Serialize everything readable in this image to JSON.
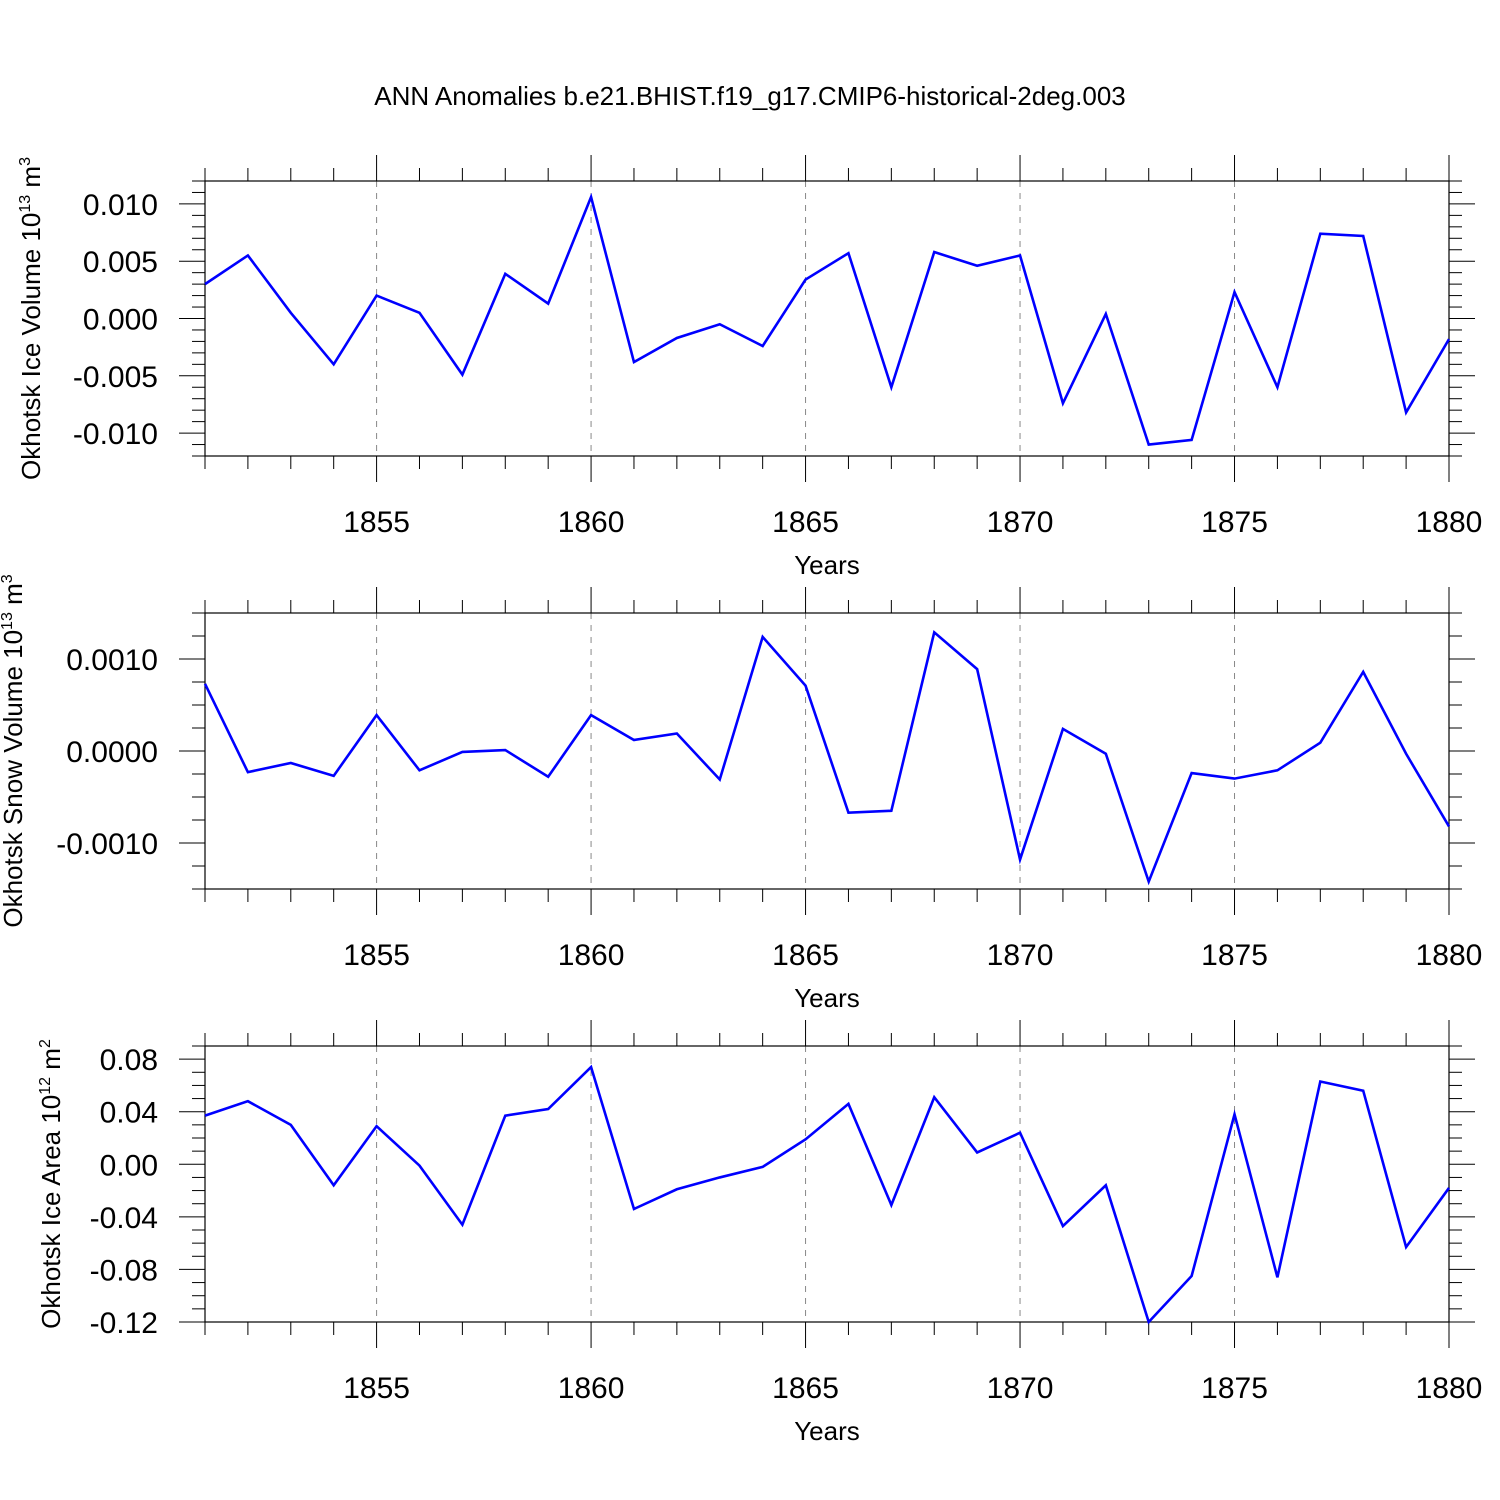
{
  "title": "ANN Anomalies b.e21.BHIST.f19_g17.CMIP6-historical-2deg.003",
  "line_color": "#0000ff",
  "chart_data": [
    {
      "type": "line",
      "xlabel": "Years",
      "ylabel": "Okhotsk Ice Volume 10^13 m^3",
      "ylabel_parts": {
        "base": "Okhotsk Ice Volume 10",
        "exp1": "13",
        "unit": " m",
        "exp2": "3"
      },
      "xlim": [
        1851,
        1880
      ],
      "ylim": [
        -0.012,
        0.012
      ],
      "xticks": [
        1855,
        1860,
        1865,
        1870,
        1875,
        1880
      ],
      "xtick_labels": [
        "1855",
        "1860",
        "1865",
        "1870",
        "1875",
        "1880"
      ],
      "yticks": [
        0.01,
        0.005,
        0.0,
        -0.005,
        -0.01
      ],
      "ytick_labels": [
        "0.010",
        "0.005",
        "0.000",
        "-0.005",
        "-0.010"
      ],
      "y_minor_step": 0.001,
      "grid": "vertical dashed at major x ticks",
      "x": [
        1851,
        1852,
        1853,
        1854,
        1855,
        1856,
        1857,
        1858,
        1859,
        1860,
        1861,
        1862,
        1863,
        1864,
        1865,
        1866,
        1867,
        1868,
        1869,
        1870,
        1871,
        1872,
        1873,
        1874,
        1875,
        1876,
        1877,
        1878,
        1879,
        1880
      ],
      "y": [
        0.003,
        0.0055,
        0.0005,
        -0.004,
        0.002,
        0.0005,
        -0.0049,
        0.0039,
        0.0013,
        0.0106,
        -0.0038,
        -0.0017,
        -0.0005,
        -0.0024,
        0.0034,
        0.0057,
        -0.006,
        0.0058,
        0.0046,
        0.0055,
        -0.0074,
        0.0004,
        -0.011,
        -0.0106,
        0.0023,
        -0.006,
        0.0074,
        0.0072,
        -0.0082,
        -0.0018
      ]
    },
    {
      "type": "line",
      "xlabel": "Years",
      "ylabel": "Okhotsk Snow Volume 10^13 m^3",
      "ylabel_parts": {
        "base": "Okhotsk Snow Volume 10",
        "exp1": "13",
        "unit": " m",
        "exp2": "3"
      },
      "xlim": [
        1851,
        1880
      ],
      "ylim": [
        -0.0015,
        0.0015
      ],
      "xticks": [
        1855,
        1860,
        1865,
        1870,
        1875,
        1880
      ],
      "xtick_labels": [
        "1855",
        "1860",
        "1865",
        "1870",
        "1875",
        "1880"
      ],
      "yticks": [
        0.001,
        0.0,
        -0.001
      ],
      "ytick_labels": [
        "0.0010",
        "0.0000",
        "-0.0010"
      ],
      "y_minor_step": 0.00025,
      "grid": "vertical dashed at major x ticks",
      "x": [
        1851,
        1852,
        1853,
        1854,
        1855,
        1856,
        1857,
        1858,
        1859,
        1860,
        1861,
        1862,
        1863,
        1864,
        1865,
        1866,
        1867,
        1868,
        1869,
        1870,
        1871,
        1872,
        1873,
        1874,
        1875,
        1876,
        1877,
        1878,
        1879,
        1880
      ],
      "y": [
        0.00073,
        -0.00023,
        -0.00013,
        -0.00027,
        0.00039,
        -0.00021,
        -1e-05,
        1e-05,
        -0.00028,
        0.00039,
        0.00012,
        0.00019,
        -0.00031,
        0.00124,
        0.00071,
        -0.00067,
        -0.00065,
        0.00129,
        0.00089,
        -0.00118,
        0.00024,
        -3e-05,
        -0.00142,
        -0.00024,
        -0.0003,
        -0.00021,
        9e-05,
        0.00086,
        -3e-05,
        -0.00082
      ]
    },
    {
      "type": "line",
      "xlabel": "Years",
      "ylabel": "Okhotsk Ice Area 10^12 m^2",
      "ylabel_parts": {
        "base": "Okhotsk Ice Area 10",
        "exp1": "12",
        "unit": " m",
        "exp2": "2"
      },
      "xlim": [
        1851,
        1880
      ],
      "ylim": [
        -0.12,
        0.09
      ],
      "xticks": [
        1855,
        1860,
        1865,
        1870,
        1875,
        1880
      ],
      "xtick_labels": [
        "1855",
        "1860",
        "1865",
        "1870",
        "1875",
        "1880"
      ],
      "yticks": [
        0.08,
        0.04,
        0.0,
        -0.04,
        -0.08,
        -0.12
      ],
      "ytick_labels": [
        "0.08",
        "0.04",
        "0.00",
        "-0.04",
        "-0.08",
        "-0.12"
      ],
      "y_minor_step": 0.01,
      "grid": "vertical dashed at major x ticks",
      "x": [
        1851,
        1852,
        1853,
        1854,
        1855,
        1856,
        1857,
        1858,
        1859,
        1860,
        1861,
        1862,
        1863,
        1864,
        1865,
        1866,
        1867,
        1868,
        1869,
        1870,
        1871,
        1872,
        1873,
        1874,
        1875,
        1876,
        1877,
        1878,
        1879,
        1880
      ],
      "y": [
        0.037,
        0.048,
        0.03,
        -0.016,
        0.029,
        -0.001,
        -0.046,
        0.037,
        0.042,
        0.074,
        -0.034,
        -0.019,
        -0.01,
        -0.002,
        0.019,
        0.046,
        -0.031,
        0.051,
        0.009,
        0.024,
        -0.047,
        -0.016,
        -0.12,
        -0.085,
        0.038,
        -0.086,
        0.063,
        0.056,
        -0.063,
        -0.018
      ]
    }
  ]
}
